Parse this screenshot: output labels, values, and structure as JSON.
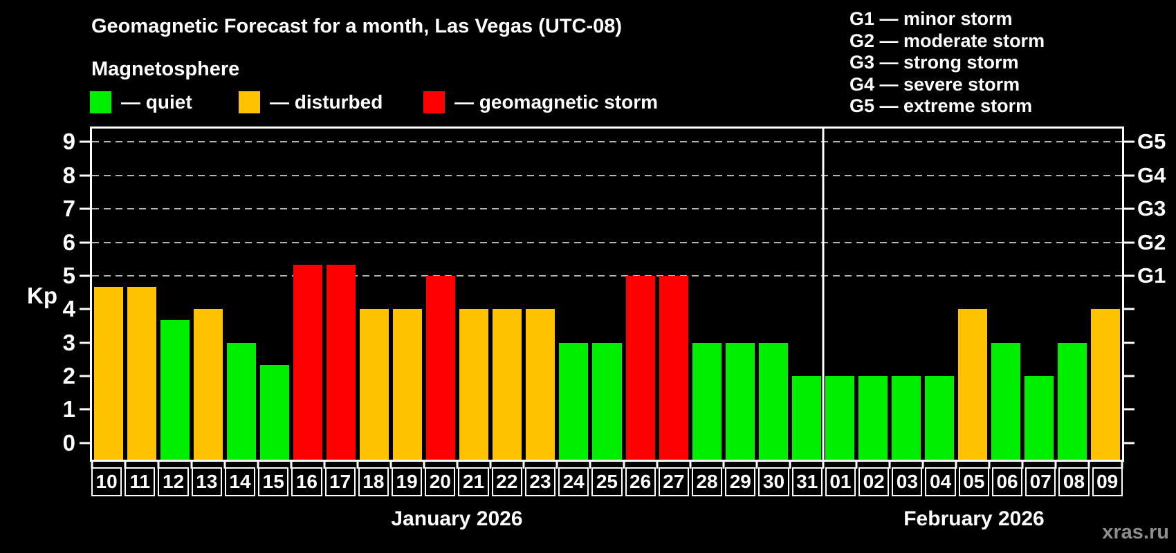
{
  "header": {
    "title": "Geomagnetic Forecast for a month, Las Vegas (UTC-08)",
    "subtitle": "Magnetosphere"
  },
  "legend": {
    "items": [
      {
        "level": "quiet",
        "label": "— quiet"
      },
      {
        "level": "disturbed",
        "label": "— disturbed"
      },
      {
        "level": "storm",
        "label": "— geomagnetic storm"
      }
    ]
  },
  "g_scale": {
    "lines": [
      "G1 — minor storm",
      "G2 — moderate storm",
      "G3 — strong storm",
      "G4 — severe storm",
      "G5 — extreme storm"
    ]
  },
  "watermark": "xras.ru",
  "chart_data": {
    "type": "bar",
    "title": "Geomagnetic Forecast for a month, Las Vegas (UTC-08)",
    "subtitle": "Magnetosphere",
    "ylabel": "Kp",
    "ylim": [
      -0.5,
      9.4
    ],
    "yticks": [
      0,
      1,
      2,
      3,
      4,
      5,
      6,
      7,
      8,
      9
    ],
    "grid_levels": [
      5,
      6,
      7,
      8,
      9
    ],
    "grid_style": "dashed horizontal lines at Kp 5-9 only",
    "right_axis_labels": [
      {
        "kp": 5,
        "label": "G1"
      },
      {
        "kp": 6,
        "label": "G2"
      },
      {
        "kp": 7,
        "label": "G3"
      },
      {
        "kp": 8,
        "label": "G4"
      },
      {
        "kp": 9,
        "label": "G5"
      }
    ],
    "colors": {
      "quiet": "#00ee00",
      "disturbed": "#ffc200",
      "storm": "#ff0000"
    },
    "months": [
      {
        "label": "January 2026",
        "days": 22
      },
      {
        "label": "February 2026",
        "days": 9
      }
    ],
    "bars": [
      {
        "date": "10",
        "kp": 4.67,
        "level": "disturbed"
      },
      {
        "date": "11",
        "kp": 4.67,
        "level": "disturbed"
      },
      {
        "date": "12",
        "kp": 3.67,
        "level": "quiet"
      },
      {
        "date": "13",
        "kp": 4,
        "level": "disturbed"
      },
      {
        "date": "14",
        "kp": 3,
        "level": "quiet"
      },
      {
        "date": "15",
        "kp": 2.33,
        "level": "quiet"
      },
      {
        "date": "16",
        "kp": 5.33,
        "level": "storm"
      },
      {
        "date": "17",
        "kp": 5.33,
        "level": "storm"
      },
      {
        "date": "18",
        "kp": 4,
        "level": "disturbed"
      },
      {
        "date": "19",
        "kp": 4,
        "level": "disturbed"
      },
      {
        "date": "20",
        "kp": 5,
        "level": "storm"
      },
      {
        "date": "21",
        "kp": 4,
        "level": "disturbed"
      },
      {
        "date": "22",
        "kp": 4,
        "level": "disturbed"
      },
      {
        "date": "23",
        "kp": 4,
        "level": "disturbed"
      },
      {
        "date": "24",
        "kp": 3,
        "level": "quiet"
      },
      {
        "date": "25",
        "kp": 3,
        "level": "quiet"
      },
      {
        "date": "26",
        "kp": 5,
        "level": "storm"
      },
      {
        "date": "27",
        "kp": 5,
        "level": "storm"
      },
      {
        "date": "28",
        "kp": 3,
        "level": "quiet"
      },
      {
        "date": "29",
        "kp": 3,
        "level": "quiet"
      },
      {
        "date": "30",
        "kp": 3,
        "level": "quiet"
      },
      {
        "date": "31",
        "kp": 2,
        "level": "quiet"
      },
      {
        "date": "01",
        "kp": 2,
        "level": "quiet"
      },
      {
        "date": "02",
        "kp": 2,
        "level": "quiet"
      },
      {
        "date": "03",
        "kp": 2,
        "level": "quiet"
      },
      {
        "date": "04",
        "kp": 2,
        "level": "quiet"
      },
      {
        "date": "05",
        "kp": 4,
        "level": "disturbed"
      },
      {
        "date": "06",
        "kp": 3,
        "level": "quiet"
      },
      {
        "date": "07",
        "kp": 2,
        "level": "quiet"
      },
      {
        "date": "08",
        "kp": 3,
        "level": "quiet"
      },
      {
        "date": "09",
        "kp": 4,
        "level": "disturbed"
      }
    ]
  }
}
